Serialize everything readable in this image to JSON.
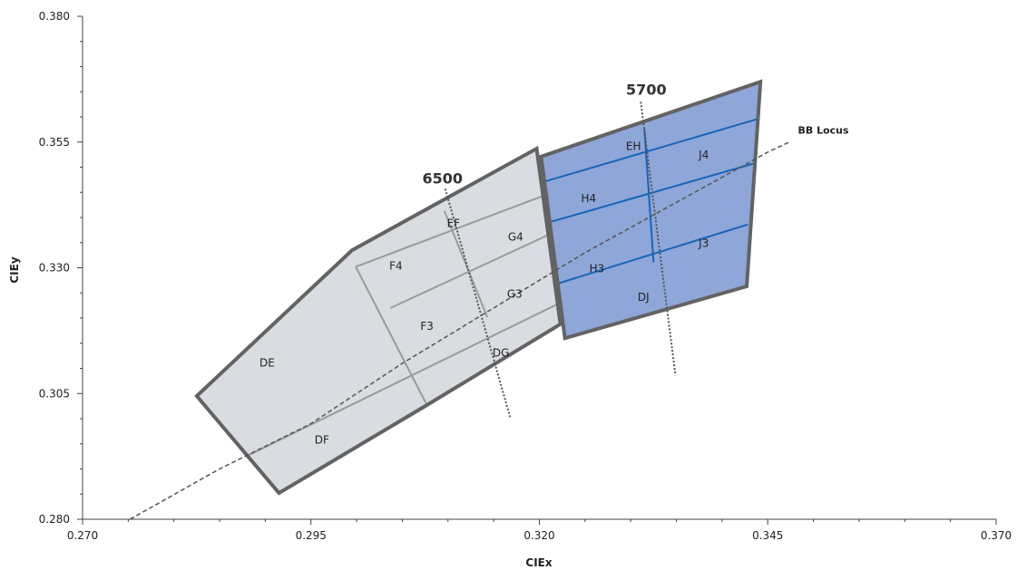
{
  "chart_data": {
    "type": "scatter",
    "xlabel": "CIEx",
    "ylabel": "CIEy",
    "xlim": [
      0.27,
      0.37
    ],
    "ylim": [
      0.28,
      0.38
    ],
    "x_ticks": [
      "0.270",
      "0.295",
      "0.320",
      "0.345",
      "0.370"
    ],
    "y_ticks": [
      "0.280",
      "0.305",
      "0.330",
      "0.355",
      "0.380"
    ],
    "colors": {
      "gray_fill": "#d9dce0",
      "gray_stroke": "#636363",
      "gray_inner": "#9a9a9a",
      "blue_fill": "#8fa6d8",
      "blue_inner": "#1565b8",
      "locus": "#555555"
    },
    "regions": [
      {
        "group": "6500",
        "outline": [
          [
            0.2825,
            0.3045
          ],
          [
            0.2995,
            0.3335
          ],
          [
            0.3197,
            0.3537
          ],
          [
            0.3223,
            0.3188
          ],
          [
            0.3077,
            0.3027
          ],
          [
            0.2915,
            0.2852
          ]
        ],
        "fill": "gray"
      },
      {
        "group": "5700",
        "outline": [
          [
            0.3202,
            0.3521
          ],
          [
            0.3442,
            0.367
          ],
          [
            0.3427,
            0.3263
          ],
          [
            0.3228,
            0.316
          ]
        ],
        "fill": "blue"
      }
    ],
    "inner_lines": {
      "gray": [
        [
          [
            0.2999,
            0.3302
          ],
          [
            0.3077,
            0.3027
          ]
        ],
        [
          [
            0.2999,
            0.3302
          ],
          [
            0.321,
            0.3447
          ]
        ],
        [
          [
            0.3037,
            0.322
          ],
          [
            0.3213,
            0.3368
          ]
        ],
        [
          [
            0.288,
            0.2926
          ],
          [
            0.3218,
            0.3226
          ]
        ],
        [
          [
            0.3096,
            0.3413
          ],
          [
            0.3143,
            0.3202
          ]
        ]
      ],
      "blue": [
        [
          [
            0.3205,
            0.3471
          ],
          [
            0.3441,
            0.3597
          ]
        ],
        [
          [
            0.321,
            0.339
          ],
          [
            0.3434,
            0.3507
          ]
        ],
        [
          [
            0.3219,
            0.3268
          ],
          [
            0.3428,
            0.3386
          ]
        ],
        [
          [
            0.3315,
            0.3576
          ],
          [
            0.3325,
            0.3311
          ]
        ]
      ]
    },
    "bins": [
      {
        "label": "DE",
        "x": 0.2902,
        "y": 0.3111
      },
      {
        "label": "DF",
        "x": 0.2962,
        "y": 0.2958
      },
      {
        "label": "F4",
        "x": 0.3043,
        "y": 0.3304
      },
      {
        "label": "F3",
        "x": 0.3077,
        "y": 0.3184
      },
      {
        "label": "EF",
        "x": 0.3106,
        "y": 0.3388
      },
      {
        "label": "G4",
        "x": 0.3174,
        "y": 0.3361
      },
      {
        "label": "G3",
        "x": 0.3173,
        "y": 0.3248
      },
      {
        "label": "DG",
        "x": 0.3158,
        "y": 0.3131
      },
      {
        "label": "EH",
        "x": 0.3303,
        "y": 0.3541
      },
      {
        "label": "J4",
        "x": 0.338,
        "y": 0.3524
      },
      {
        "label": "H4",
        "x": 0.3254,
        "y": 0.3438
      },
      {
        "label": "J3",
        "x": 0.338,
        "y": 0.3349
      },
      {
        "label": "H3",
        "x": 0.3263,
        "y": 0.3298
      },
      {
        "label": "DJ",
        "x": 0.3314,
        "y": 0.3241
      }
    ],
    "cct_lines": [
      {
        "label": "6500",
        "label_x": 0.3094,
        "label_y": 0.3478,
        "line": [
          [
            0.3097,
            0.3457
          ],
          [
            0.3168,
            0.3003
          ]
        ]
      },
      {
        "label": "5700",
        "label_x": 0.3317,
        "label_y": 0.3655,
        "line": [
          [
            0.3311,
            0.363
          ],
          [
            0.3349,
            0.3086
          ]
        ]
      }
    ],
    "locus": {
      "label": "BB Locus",
      "label_x": 0.3483,
      "label_y": 0.3574,
      "points": [
        [
          0.2752,
          0.28
        ],
        [
          0.285,
          0.29
        ],
        [
          0.295,
          0.299
        ],
        [
          0.305,
          0.311
        ],
        [
          0.315,
          0.322
        ],
        [
          0.325,
          0.333
        ],
        [
          0.335,
          0.343
        ],
        [
          0.345,
          0.353
        ],
        [
          0.3475,
          0.3551
        ]
      ]
    }
  }
}
